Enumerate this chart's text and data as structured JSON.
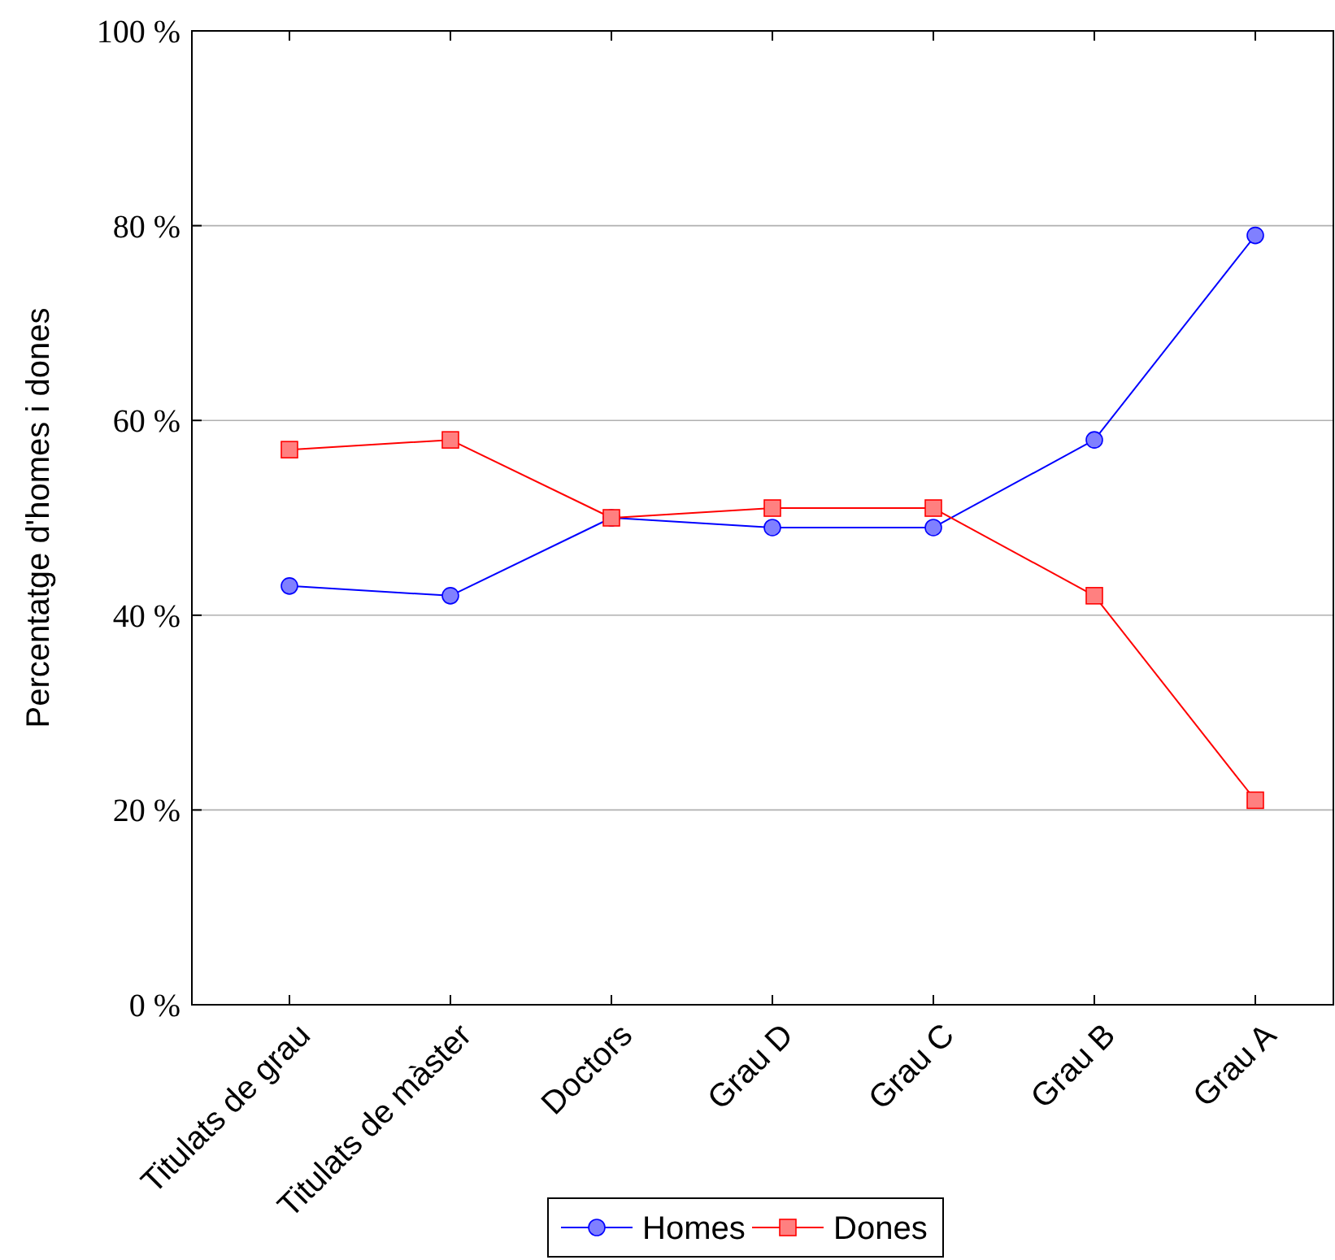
{
  "chart_data": {
    "type": "line",
    "ylabel": "Percentatge d'homes i dones",
    "categories": [
      "Titulats de grau",
      "Titulats de màster",
      "Doctors",
      "Grau D",
      "Grau C",
      "Grau B",
      "Grau A"
    ],
    "series": [
      {
        "name": "Homes",
        "color": "#0000ff",
        "marker": "circle",
        "values": [
          43,
          42,
          50,
          49,
          49,
          58,
          79
        ]
      },
      {
        "name": "Dones",
        "color": "#ff0000",
        "marker": "square",
        "values": [
          57,
          58,
          50,
          51,
          51,
          42,
          21
        ]
      }
    ],
    "ylim": [
      0,
      100
    ],
    "yticks": [
      {
        "value": 0,
        "label": "0 %"
      },
      {
        "value": 20,
        "label": "20 %"
      },
      {
        "value": 40,
        "label": "40 %"
      },
      {
        "value": 60,
        "label": "60 %"
      },
      {
        "value": 80,
        "label": "80 %"
      },
      {
        "value": 100,
        "label": "100 %"
      }
    ],
    "grid": "y",
    "legend": "bottom",
    "line_style": "solid"
  }
}
